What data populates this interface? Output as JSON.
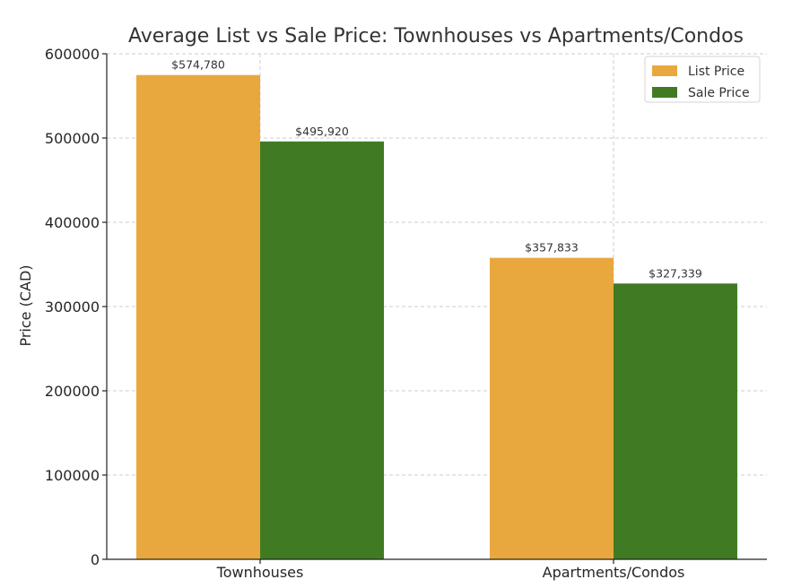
{
  "chart_data": {
    "type": "bar",
    "title": "Average List vs Sale Price: Townhouses vs Apartments/Condos",
    "xlabel": "",
    "ylabel": "Price (CAD)",
    "categories": [
      "Townhouses",
      "Apartments/Condos"
    ],
    "series": [
      {
        "name": "List Price",
        "color": "#E8A83E",
        "values": [
          574780,
          357833
        ],
        "labels": [
          "$574,780",
          "$357,833"
        ]
      },
      {
        "name": "Sale Price",
        "color": "#407B24",
        "values": [
          495920,
          327339
        ],
        "labels": [
          "$495,920",
          "$327,339"
        ]
      }
    ],
    "ylim": [
      0,
      600000
    ],
    "yticks": [
      0,
      100000,
      200000,
      300000,
      400000,
      500000,
      600000
    ],
    "ytick_labels": [
      "0",
      "100000",
      "200000",
      "300000",
      "400000",
      "500000",
      "600000"
    ],
    "grid": true,
    "legend_position": "top-right"
  }
}
